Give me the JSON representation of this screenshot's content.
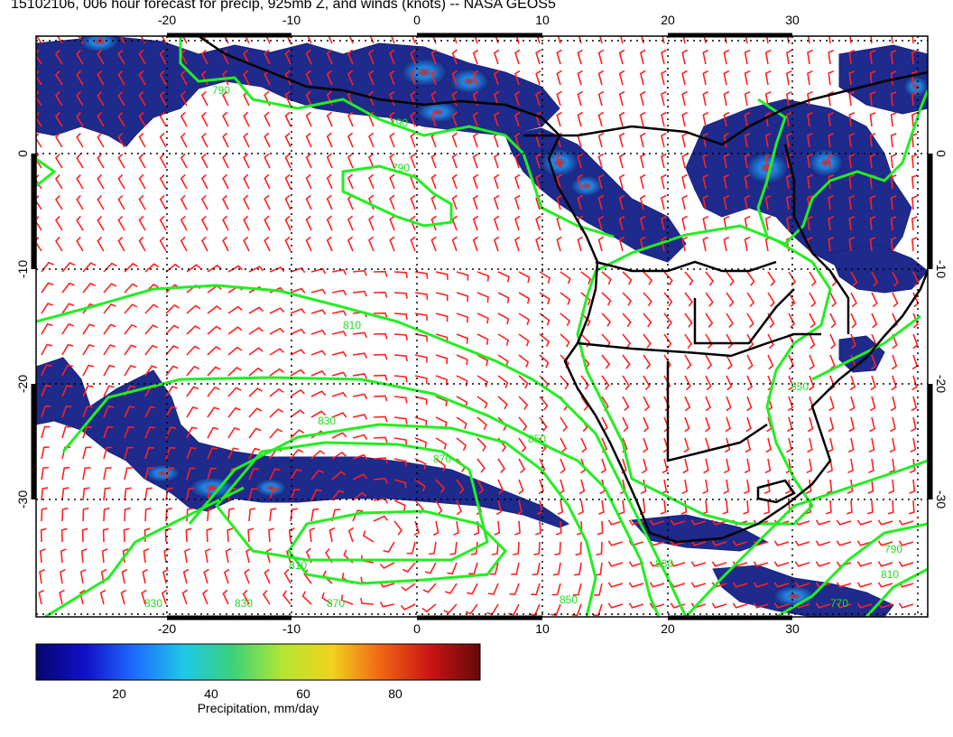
{
  "title": "15102106, 006 hour forecast for precip, 925mb Z, and winds (knots) -- NASA GEOS5",
  "map": {
    "lon_ticks_top": [
      "-20",
      "-10",
      "0",
      "10",
      "20",
      "30"
    ],
    "lon_ticks_bottom": [
      "-20",
      "-10",
      "0",
      "10",
      "20",
      "30"
    ],
    "lat_ticks_left": [
      "0",
      "-10",
      "-20",
      "-30"
    ],
    "lat_ticks_right": [
      "0",
      "-10",
      "-20",
      "-30"
    ],
    "contour_labels": [
      "790",
      "790",
      "790",
      "810",
      "830",
      "850",
      "870",
      "810",
      "850",
      "830",
      "870",
      "830",
      "850",
      "830",
      "810",
      "790",
      "770"
    ],
    "colors": {
      "wind_barb": "#ff2020",
      "contour": "#22ee22",
      "coastline": "#000000",
      "precip_low": "#1a237e",
      "precip_mid": "#1e88e5",
      "precip_high": "#b71c1c"
    }
  },
  "colorbar": {
    "ticks": [
      "20",
      "40",
      "60",
      "80"
    ],
    "caption": "Precipitation, mm/day",
    "min": 0,
    "max": 100,
    "stops": [
      "#06066e",
      "#1010c8",
      "#1e6cff",
      "#1ec8e6",
      "#3cd27a",
      "#b4e632",
      "#f0d21e",
      "#f06414",
      "#c81414",
      "#640a0a"
    ]
  }
}
